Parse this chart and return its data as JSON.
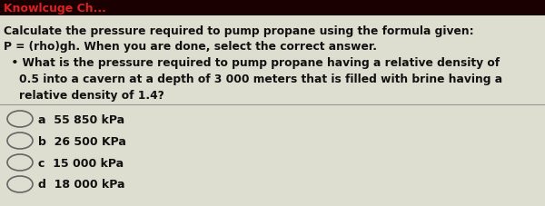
{
  "bg_color": "#ddddd0",
  "header_bg": "#1a0000",
  "title_line1": "Calculate the pressure required to pump propane using the formula given:",
  "title_line2": "P = (rho)gh. When you are done, select the correct answer.",
  "bullet_line1": "  • What is the pressure required to pump propane having a relative density of",
  "bullet_line2": "    0.5 into a cavern at a depth of 3 000 meters that is filled with brine having a",
  "bullet_line3": "    relative density of 1.4?",
  "options": [
    {
      "letter": "a",
      "text": "55 850 kPa"
    },
    {
      "letter": "b",
      "text": "26 500 KPa"
    },
    {
      "letter": "c",
      "text": "15 000 kPa"
    },
    {
      "letter": "d",
      "text": "18 000 kPa"
    }
  ],
  "text_color": "#111111",
  "circle_edge_color": "#666666",
  "option_text_color": "#111111",
  "divider_color": "#999999",
  "header_text_color": "#dd2222",
  "header_label": "Knowlcuge Ch..."
}
